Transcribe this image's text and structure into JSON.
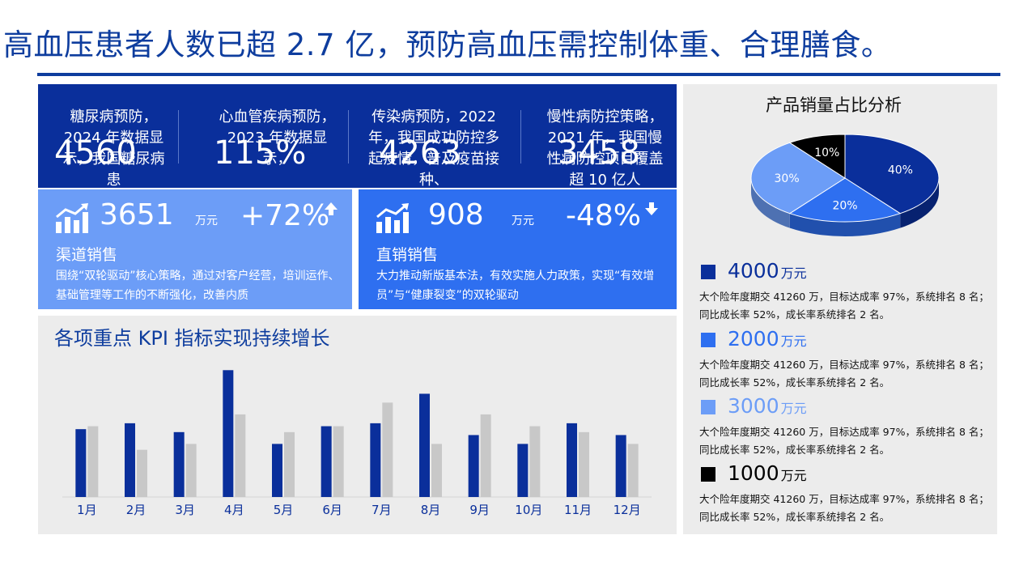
{
  "title": "高血压患者人数已超 2.7 亿，预防高血压需控制体重、合理膳食。",
  "kpis": [
    {
      "text": "糖尿病预防，2024 年数据显示，我国糖尿病患",
      "value": "4560"
    },
    {
      "text": "心血管疾病预防，2023 年数据显示，",
      "value": "115%"
    },
    {
      "text": "传染病预防，2022 年，我国成功防控多起疫情，普及疫苗接种、",
      "value": "4263"
    },
    {
      "text": "慢性病防控策略，2021 年，我国慢性病防控项目覆盖超 10 亿人",
      "value": "3458"
    }
  ],
  "cards": [
    {
      "value": "3651",
      "unit": "万元",
      "change": "+72%",
      "arrow": "up",
      "label": "渠道销售",
      "desc": "围绕“双轮驱动”核心策略，通过对客户经营，培训运作、基础管理等工作的不断强化，改善内质"
    },
    {
      "value": "908",
      "unit": "万元",
      "change": "-48%",
      "arrow": "down",
      "label": "直销销售",
      "desc": "大力推动新版基本法，有效实施人力政策，实现“有效增员”与“健康裂变”的双轮驱动"
    }
  ],
  "colors": {
    "primary": "#0a2f9b",
    "accent": "#2e6ff0",
    "light": "#6c9df7",
    "gray": "#c8c8c8",
    "black": "#000000"
  },
  "chart_data": [
    {
      "type": "bar",
      "title": "各项重点 KPI 指标实现持续增长",
      "categories": [
        "1月",
        "2月",
        "3月",
        "4月",
        "5月",
        "6月",
        "7月",
        "8月",
        "9月",
        "10月",
        "11月",
        "12月"
      ],
      "series": [
        {
          "values": [
            23,
            25,
            22,
            43,
            18,
            24,
            25,
            35,
            21,
            18,
            25,
            21
          ],
          "color": "#0a2f9b"
        },
        {
          "values": [
            24,
            16,
            18,
            28,
            22,
            24,
            32,
            18,
            28,
            24,
            22,
            18
          ],
          "color": "#c8c8c8"
        }
      ],
      "ylim": [
        0,
        45
      ],
      "grid": false,
      "legend": "none"
    },
    {
      "type": "pie",
      "title": "产品销量占比分析",
      "slices": [
        {
          "label": "40%",
          "value": 40,
          "color": "#0a2f9b"
        },
        {
          "label": "20%",
          "value": 20,
          "color": "#2e6ff0"
        },
        {
          "label": "30%",
          "value": 30,
          "color": "#6c9df7"
        },
        {
          "label": "10%",
          "value": 10,
          "color": "#000000"
        }
      ]
    }
  ],
  "legend_items": [
    {
      "value": "4000",
      "unit": "万元",
      "color": "#0a2f9b",
      "desc": "大个险年度期交 41260 万，目标达成率 97%，系统排名 8 名；同比成长率 52%，成长率系统排名 2 名。"
    },
    {
      "value": "2000",
      "unit": "万元",
      "color": "#2e6ff0",
      "desc": "大个险年度期交 41260 万，目标达成率 97%，系统排名 8 名；同比成长率 52%，成长率系统排名 2 名。"
    },
    {
      "value": "3000",
      "unit": "万元",
      "color": "#6c9df7",
      "desc": "大个险年度期交 41260 万，目标达成率 97%，系统排名 8 名；同比成长率 52%，成长率系统排名 2 名。"
    },
    {
      "value": "1000",
      "unit": "万元",
      "color": "#000000",
      "desc": "大个险年度期交 41260 万，目标达成率 97%，系统排名 8 名；同比成长率 52%，成长率系统排名 2 名。"
    }
  ]
}
